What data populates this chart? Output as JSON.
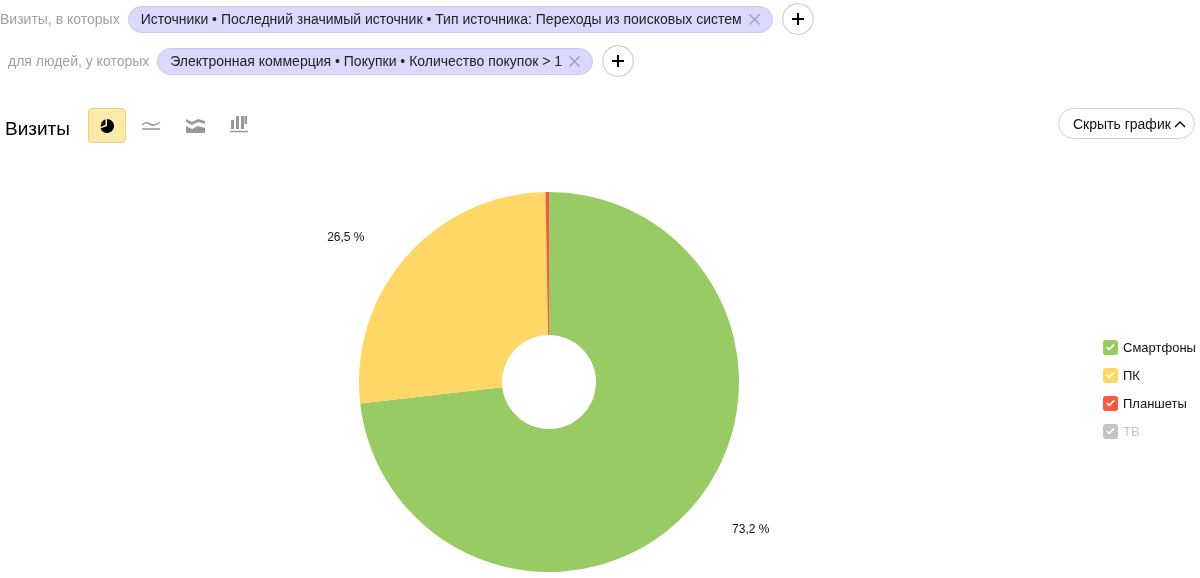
{
  "chart_data": {
    "type": "donut",
    "title": "Визиты",
    "categories": [
      "Смартфоны",
      "ПК",
      "Планшеты",
      "ТВ"
    ],
    "values": [
      73.2,
      26.5,
      0.3,
      null
    ],
    "colors": [
      "#98cb64",
      "#fed766",
      "#f95a3f",
      "#c4c4c4"
    ],
    "value_labels": [
      "73,2 %",
      "26,5 %",
      null,
      null
    ],
    "legend": "right",
    "annotations": [
      "Визиты, в которых",
      "Источники • Последний значимый источник • Тип источника: Переходы из поисковых систем",
      "для людей, у которых",
      "Электронная коммерция • Покупки • Количество покупок > 1",
      "Скрыть график"
    ]
  }
}
